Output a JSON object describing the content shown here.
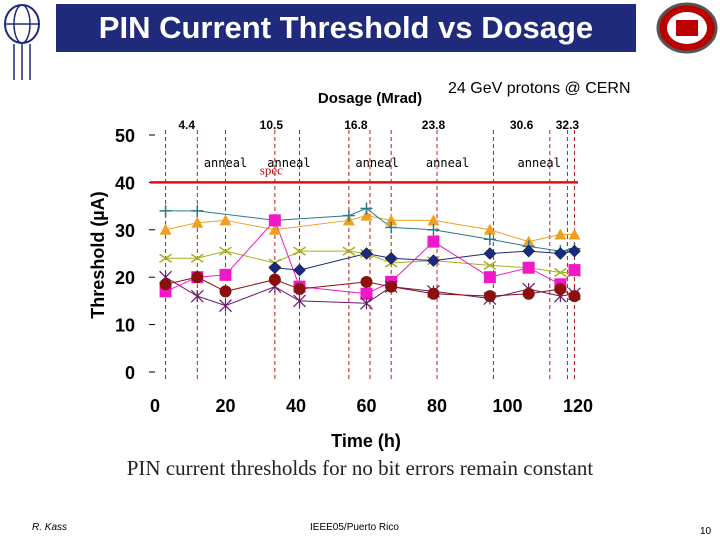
{
  "slide": {
    "title": "PIN Current Threshold vs Dosage",
    "subtitle": "24 GeV protons @ CERN",
    "caption": "PIN current thresholds for no bit errors remain constant",
    "footer_left": "R. Kass",
    "footer_center": "IEEE05/Puerto Rico",
    "page_number": "10",
    "colors": {
      "title_bg": "#1f2a7a",
      "title_text": "#ffffff",
      "osu_red": "#bb0000"
    }
  },
  "chart_data": {
    "type": "line",
    "title": "",
    "xlabel": "Time (h)",
    "ylabel": "Threshold (µA)",
    "top_axis_label": "Dosage (Mrad)",
    "xlim": [
      0,
      120
    ],
    "ylim": [
      0,
      50
    ],
    "x_ticks": [
      "0",
      "20",
      "40",
      "60",
      "80",
      "100",
      "120"
    ],
    "y_ticks": [
      "0",
      "10",
      "20",
      "30",
      "40",
      "50"
    ],
    "dosage_marks": [
      {
        "label": "4.4",
        "x": 9
      },
      {
        "label": "10.5",
        "x": 33
      },
      {
        "label": "16.8",
        "x": 57
      },
      {
        "label": "23.8",
        "x": 79
      },
      {
        "label": "30.6",
        "x": 104
      },
      {
        "label": "32.3",
        "x": 117
      }
    ],
    "anneal_label": "anneal",
    "anneal_x": [
      20,
      38,
      63,
      83,
      109
    ],
    "dashed_lines_x": [
      3,
      12,
      20,
      34,
      41,
      55,
      61,
      67,
      80,
      96,
      112,
      117,
      119
    ],
    "spec": {
      "label": "spec",
      "value": 40
    },
    "series": [
      {
        "name": "orange-triangle",
        "color": "#f0a020",
        "marker": "triangle",
        "x": [
          3,
          12,
          20,
          34,
          55,
          60,
          67,
          79,
          95,
          106,
          115,
          119
        ],
        "y": [
          30,
          31.5,
          32,
          30,
          32,
          33,
          32,
          32,
          30,
          27.5,
          29,
          29
        ]
      },
      {
        "name": "teal-plus",
        "color": "#2a7a8a",
        "marker": "plus",
        "x": [
          3,
          12,
          34,
          55,
          60,
          67,
          79,
          95,
          106,
          115,
          119
        ],
        "y": [
          34,
          34,
          32,
          33,
          34.5,
          30.5,
          30,
          28,
          26.5,
          25.5,
          26
        ]
      },
      {
        "name": "olive-x",
        "color": "#a8b020",
        "marker": "x",
        "x": [
          3,
          12,
          20,
          34,
          41,
          55,
          60,
          67,
          79,
          95,
          106,
          115,
          119
        ],
        "y": [
          24,
          24,
          25.5,
          23,
          25.5,
          25.5,
          25,
          23,
          23.5,
          22.5,
          22,
          21,
          21
        ]
      },
      {
        "name": "navy-diamond",
        "color": "#1a2a80",
        "marker": "diamond",
        "x": [
          34,
          41,
          60,
          67,
          79,
          95,
          106,
          115,
          119
        ],
        "y": [
          22,
          21.5,
          25,
          24,
          23.5,
          25,
          25.5,
          25,
          25.5
        ]
      },
      {
        "name": "magenta-square",
        "color": "#f018c8",
        "marker": "square",
        "x": [
          3,
          12,
          20,
          34,
          41,
          60,
          67,
          79,
          95,
          106,
          115,
          119
        ],
        "y": [
          17,
          20,
          20.5,
          32,
          18,
          16.5,
          19,
          27.5,
          20,
          22,
          18.5,
          21.5
        ]
      },
      {
        "name": "purple-star",
        "color": "#6a1a6a",
        "marker": "star",
        "x": [
          3,
          12,
          20,
          34,
          41,
          60,
          67,
          79,
          95,
          106,
          115,
          119
        ],
        "y": [
          20,
          16,
          14,
          18,
          15,
          14.5,
          18,
          17,
          15.5,
          17.5,
          16,
          16.5
        ]
      },
      {
        "name": "darkred-circle",
        "color": "#8a1010",
        "marker": "circle",
        "x": [
          3,
          12,
          20,
          34,
          41,
          60,
          67,
          79,
          95,
          106,
          115,
          119
        ],
        "y": [
          18.5,
          20,
          17,
          19.5,
          17.5,
          19,
          18,
          16.5,
          16,
          16.5,
          17.5,
          16
        ]
      }
    ]
  }
}
